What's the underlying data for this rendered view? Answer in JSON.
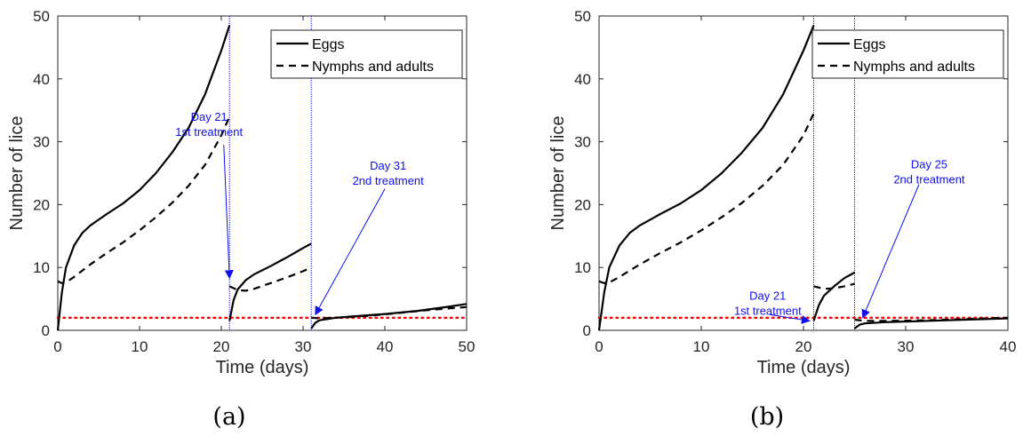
{
  "chart_data": [
    {
      "type": "line",
      "panel_label": "(a)",
      "xlabel": "Time (days)",
      "ylabel": "Number of lice",
      "xlim": [
        0,
        50
      ],
      "ylim": [
        0,
        50
      ],
      "xticks": [
        0,
        10,
        20,
        30,
        40,
        50
      ],
      "yticks": [
        0,
        10,
        20,
        30,
        40,
        50
      ],
      "grid": false,
      "legend_position": "top-right",
      "threshold": {
        "y": 2,
        "color": "#ff0000",
        "style": "dotted"
      },
      "treatment_days": [
        21,
        31
      ],
      "series": [
        {
          "name": "Eggs",
          "style": "solid",
          "color": "#000000",
          "segments": [
            [
              [
                0,
                0
              ],
              [
                0.5,
                6
              ],
              [
                1,
                10
              ],
              [
                2,
                13.5
              ],
              [
                3,
                15.5
              ],
              [
                4,
                16.7
              ],
              [
                5,
                17.6
              ],
              [
                6,
                18.5
              ],
              [
                8,
                20.2
              ],
              [
                10,
                22.3
              ],
              [
                12,
                25
              ],
              [
                14,
                28.3
              ],
              [
                16,
                32.2
              ],
              [
                18,
                37.5
              ],
              [
                20,
                44.5
              ],
              [
                21,
                48.5
              ]
            ],
            [
              [
                21,
                1.5
              ],
              [
                21.5,
                4.8
              ],
              [
                22,
                6.5
              ],
              [
                23,
                8
              ],
              [
                24,
                8.9
              ],
              [
                26,
                10.2
              ],
              [
                28,
                11.6
              ],
              [
                30,
                13.1
              ],
              [
                31,
                13.8
              ]
            ],
            [
              [
                31,
                0.3
              ],
              [
                31.5,
                1.2
              ],
              [
                32,
                1.6
              ],
              [
                34,
                2
              ],
              [
                36,
                2.2
              ],
              [
                38,
                2.4
              ],
              [
                40,
                2.6
              ],
              [
                44,
                3.1
              ],
              [
                48,
                3.8
              ],
              [
                50,
                4.2
              ]
            ]
          ]
        },
        {
          "name": "Nymphs and adults",
          "style": "dashed",
          "color": "#000000",
          "segments": [
            [
              [
                0,
                7.8
              ],
              [
                0.5,
                7.5
              ],
              [
                1,
                7.6
              ],
              [
                2,
                8.5
              ],
              [
                4,
                10.5
              ],
              [
                6,
                12.3
              ],
              [
                8,
                14
              ],
              [
                10,
                15.9
              ],
              [
                12,
                18
              ],
              [
                14,
                20.3
              ],
              [
                16,
                23
              ],
              [
                18,
                26.3
              ],
              [
                20,
                31
              ],
              [
                21,
                34
              ]
            ],
            [
              [
                21,
                7
              ],
              [
                22,
                6.4
              ],
              [
                23,
                6.3
              ],
              [
                24,
                6.6
              ],
              [
                26,
                7.5
              ],
              [
                28,
                8.4
              ],
              [
                30,
                9.4
              ],
              [
                31,
                10
              ]
            ],
            [
              [
                31,
                2
              ],
              [
                32,
                1.9
              ],
              [
                34,
                2
              ],
              [
                38,
                2.3
              ],
              [
                42,
                2.8
              ],
              [
                46,
                3.3
              ],
              [
                50,
                3.7
              ]
            ]
          ]
        }
      ],
      "annotations": [
        {
          "lines": [
            "Day 21",
            "1st treatment"
          ],
          "text_at": [
            18.5,
            33.3
          ],
          "arrow_from": [
            20.3,
            29.5
          ],
          "arrow_to": [
            21,
            8.3
          ]
        },
        {
          "lines": [
            "Day 31",
            "2nd treatment"
          ],
          "text_at": [
            40.4,
            25.6
          ],
          "arrow_from": [
            40,
            22.5
          ],
          "arrow_to": [
            31.5,
            2.5
          ]
        }
      ]
    },
    {
      "type": "line",
      "panel_label": "(b)",
      "xlabel": "Time (days)",
      "ylabel": "Number of lice",
      "xlim": [
        0,
        40
      ],
      "ylim": [
        0,
        50
      ],
      "xticks": [
        0,
        10,
        20,
        30,
        40
      ],
      "yticks": [
        0,
        10,
        20,
        30,
        40,
        50
      ],
      "grid": false,
      "legend_position": "top-right",
      "threshold": {
        "y": 2,
        "color": "#ff0000",
        "style": "dotted"
      },
      "treatment_days": [
        21,
        25
      ],
      "series": [
        {
          "name": "Eggs",
          "style": "solid",
          "color": "#000000",
          "segments": [
            [
              [
                0,
                0
              ],
              [
                0.5,
                6
              ],
              [
                1,
                10
              ],
              [
                2,
                13.5
              ],
              [
                3,
                15.5
              ],
              [
                4,
                16.7
              ],
              [
                5,
                17.6
              ],
              [
                6,
                18.5
              ],
              [
                8,
                20.2
              ],
              [
                10,
                22.3
              ],
              [
                12,
                25
              ],
              [
                14,
                28.3
              ],
              [
                16,
                32.2
              ],
              [
                18,
                37.5
              ],
              [
                20,
                44.5
              ],
              [
                21,
                48.5
              ]
            ],
            [
              [
                21,
                1.5
              ],
              [
                21.5,
                4
              ],
              [
                22,
                5.5
              ],
              [
                23,
                7
              ],
              [
                24,
                8.3
              ],
              [
                25,
                9.2
              ]
            ],
            [
              [
                25,
                0.3
              ],
              [
                25.5,
                0.9
              ],
              [
                26,
                1.1
              ],
              [
                28,
                1.3
              ],
              [
                30,
                1.4
              ],
              [
                34,
                1.6
              ],
              [
                38,
                1.8
              ],
              [
                40,
                1.9
              ]
            ]
          ]
        },
        {
          "name": "Nymphs and adults",
          "style": "dashed",
          "color": "#000000",
          "segments": [
            [
              [
                0,
                7.8
              ],
              [
                0.5,
                7.5
              ],
              [
                1,
                7.6
              ],
              [
                2,
                8.5
              ],
              [
                4,
                10.5
              ],
              [
                6,
                12.3
              ],
              [
                8,
                14
              ],
              [
                10,
                15.9
              ],
              [
                12,
                18
              ],
              [
                14,
                20.3
              ],
              [
                16,
                23
              ],
              [
                18,
                26.3
              ],
              [
                20,
                31
              ],
              [
                21,
                34.5
              ]
            ],
            [
              [
                21,
                7
              ],
              [
                22,
                6.6
              ],
              [
                23,
                6.7
              ],
              [
                24,
                7
              ],
              [
                25,
                7.4
              ]
            ],
            [
              [
                25,
                1.7
              ],
              [
                26,
                1.5
              ],
              [
                28,
                1.5
              ],
              [
                32,
                1.6
              ],
              [
                36,
                1.8
              ],
              [
                40,
                2
              ]
            ]
          ]
        }
      ],
      "annotations": [
        {
          "lines": [
            "Day 21",
            "1st treatment"
          ],
          "text_at": [
            16.5,
            4.9
          ],
          "arrow_from": [
            16.7,
            2.5
          ],
          "arrow_to": [
            20.6,
            1.5
          ]
        },
        {
          "lines": [
            "Day 25",
            "2nd treatment"
          ],
          "text_at": [
            32.3,
            25.8
          ],
          "arrow_from": [
            31.3,
            23.2
          ],
          "arrow_to": [
            25.8,
            2
          ]
        }
      ]
    }
  ]
}
